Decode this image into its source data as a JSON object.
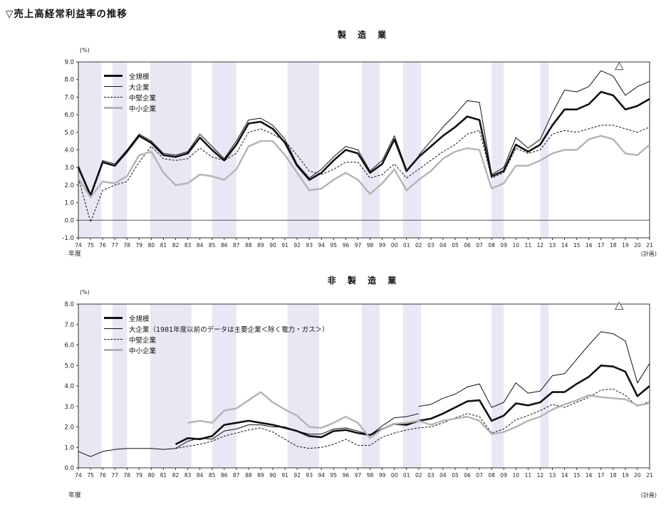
{
  "page_title": "▽売上高経常利益率の推移",
  "axis_unit_label": "(%)",
  "x_axis_caption": "年度",
  "plan_note": "(計画)",
  "colors": {
    "line_black": "#111111",
    "line_gray": "#b3b3b3",
    "recession_band": "#e8e8f5",
    "axis": "#333333",
    "marker_outline": "#555555"
  },
  "chart_data": [
    {
      "type": "line",
      "title": "製 造 業",
      "ylabel": "(%)",
      "xlabel": "年度",
      "ylim": [
        -1.0,
        9.0
      ],
      "ytick_step": 1.0,
      "grid": false,
      "legend_position": "top-left-inside",
      "y_tick_labels": [
        "9.0",
        "8.0",
        "7.0",
        "6.0",
        "5.0",
        "4.0",
        "3.0",
        "2.0",
        "1.0",
        "0.0",
        "-1.0"
      ],
      "x_labels": [
        "74",
        "75",
        "76",
        "77",
        "78",
        "79",
        "80",
        "81",
        "82",
        "83",
        "84",
        "85",
        "86",
        "87",
        "88",
        "89",
        "90",
        "91",
        "92",
        "93",
        "94",
        "95",
        "96",
        "97",
        "98",
        "99",
        "00",
        "01",
        "02",
        "03",
        "04",
        "05",
        "06",
        "07",
        "08",
        "09",
        "10",
        "11",
        "12",
        "13",
        "14",
        "15",
        "16",
        "17",
        "18",
        "19",
        "20",
        "21"
      ],
      "legend": [
        "全規模",
        "大企業",
        "中堅企業",
        "中小企業"
      ],
      "series": [
        {
          "key": "zenkibo",
          "name": "全規模",
          "style": "thick-black",
          "values": [
            3.0,
            1.4,
            3.3,
            3.1,
            3.9,
            4.8,
            4.4,
            3.7,
            3.6,
            3.8,
            4.7,
            4.0,
            3.4,
            4.3,
            5.5,
            5.6,
            5.2,
            4.4,
            3.1,
            2.3,
            2.7,
            3.4,
            4.0,
            3.8,
            2.7,
            3.2,
            4.6,
            2.8,
            3.6,
            4.2,
            4.8,
            5.3,
            5.9,
            5.7,
            2.5,
            2.8,
            4.3,
            3.9,
            4.3,
            5.4,
            6.3,
            6.3,
            6.6,
            7.3,
            7.1,
            6.3,
            6.5,
            6.9
          ]
        },
        {
          "key": "daikigyo-pre2002",
          "name": "大企業",
          "style": "thin-black",
          "values": [
            3.1,
            1.5,
            3.4,
            3.2,
            4.0,
            4.9,
            4.5,
            3.8,
            3.7,
            3.9,
            4.9,
            4.2,
            3.5,
            4.5,
            5.7,
            5.8,
            5.4,
            4.6,
            3.2,
            2.4,
            2.9,
            3.6,
            4.2,
            4.0,
            2.8,
            3.4,
            4.8,
            2.9,
            null,
            null,
            null,
            null,
            null,
            null,
            null,
            null,
            null,
            null,
            null,
            null,
            null,
            null,
            null,
            null,
            null,
            null,
            null,
            null
          ]
        },
        {
          "key": "daikigyo-post2002",
          "name": "大企業",
          "style": "thin-black",
          "values": [
            null,
            null,
            null,
            null,
            null,
            null,
            null,
            null,
            null,
            null,
            null,
            null,
            null,
            null,
            null,
            null,
            null,
            null,
            null,
            null,
            null,
            null,
            null,
            null,
            null,
            null,
            null,
            null,
            3.7,
            4.5,
            5.3,
            6.0,
            6.8,
            6.7,
            2.6,
            3.0,
            4.7,
            4.1,
            4.6,
            6.1,
            7.4,
            7.3,
            7.6,
            8.5,
            8.2,
            7.1,
            7.6,
            7.9
          ]
        },
        {
          "key": "chuken",
          "name": "中堅企業",
          "style": "dashed-black",
          "values": [
            2.4,
            -0.1,
            1.7,
            2.0,
            2.2,
            3.3,
            4.2,
            3.5,
            3.4,
            3.5,
            4.1,
            3.6,
            3.4,
            3.8,
            5.0,
            5.2,
            4.9,
            4.5,
            3.7,
            2.8,
            2.6,
            2.9,
            3.3,
            3.3,
            2.4,
            2.6,
            3.2,
            2.4,
            2.9,
            3.4,
            3.9,
            4.3,
            4.9,
            5.1,
            2.4,
            2.7,
            4.1,
            3.8,
            4.0,
            4.9,
            5.1,
            5.0,
            5.2,
            5.4,
            5.4,
            5.2,
            5.0,
            5.3
          ]
        },
        {
          "key": "chusho",
          "name": "中小企業",
          "style": "gray",
          "values": [
            2.4,
            1.3,
            2.2,
            2.1,
            2.5,
            3.7,
            3.9,
            2.7,
            2.0,
            2.1,
            2.6,
            2.5,
            2.3,
            2.9,
            4.2,
            4.5,
            4.5,
            3.7,
            2.7,
            1.7,
            1.8,
            2.3,
            2.7,
            2.3,
            1.5,
            2.1,
            2.9,
            1.7,
            2.3,
            2.8,
            3.5,
            3.9,
            4.1,
            4.0,
            1.8,
            2.1,
            3.1,
            3.1,
            3.4,
            3.8,
            4.0,
            4.0,
            4.6,
            4.8,
            4.6,
            3.8,
            3.7,
            4.3
          ]
        }
      ],
      "recession_bands": [
        [
          0,
          1.9
        ],
        [
          2.8,
          4.0
        ],
        [
          5.9,
          9.3
        ],
        [
          11.0,
          13.0
        ],
        [
          17.2,
          19.8
        ],
        [
          23.3,
          24.8
        ],
        [
          26.7,
          28.2
        ],
        [
          34.0,
          35.0
        ],
        [
          38.0,
          38.7
        ]
      ],
      "marker": {
        "shape": "triangle",
        "x": 44.5,
        "value": 8.75
      }
    },
    {
      "type": "line",
      "title": "非 製 造 業",
      "ylabel": "(%)",
      "xlabel": "年度",
      "ylim": [
        0.0,
        8.0
      ],
      "ytick_step": 1.0,
      "grid": false,
      "legend_position": "top-left-inside",
      "y_tick_labels": [
        "8.0",
        "7.0",
        "6.0",
        "5.0",
        "4.0",
        "3.0",
        "2.0",
        "1.0",
        "0.0"
      ],
      "x_labels": [
        "74",
        "75",
        "76",
        "77",
        "78",
        "79",
        "80",
        "81",
        "82",
        "83",
        "84",
        "85",
        "86",
        "87",
        "88",
        "89",
        "90",
        "91",
        "92",
        "93",
        "94",
        "95",
        "96",
        "97",
        "98",
        "99",
        "00",
        "01",
        "02",
        "03",
        "04",
        "05",
        "06",
        "07",
        "08",
        "09",
        "10",
        "11",
        "12",
        "13",
        "14",
        "15",
        "16",
        "17",
        "18",
        "19",
        "20",
        "21"
      ],
      "legend": [
        "全規模",
        "大企業（1981年度以前のデータは主要企業＜除く電力・ガス＞）",
        "中堅企業",
        "中小企業"
      ],
      "series": [
        {
          "key": "zenkibo",
          "name": "全規模",
          "style": "thick-black",
          "values": [
            null,
            null,
            null,
            null,
            null,
            null,
            null,
            null,
            1.15,
            1.45,
            1.4,
            1.55,
            2.1,
            2.2,
            2.3,
            2.2,
            2.1,
            1.95,
            1.8,
            1.55,
            1.5,
            1.8,
            1.85,
            1.7,
            1.6,
            1.9,
            2.15,
            2.1,
            2.3,
            2.4,
            2.65,
            2.95,
            3.25,
            3.3,
            2.3,
            2.55,
            3.15,
            3.05,
            3.2,
            3.7,
            3.7,
            4.1,
            4.45,
            5.0,
            4.95,
            4.7,
            3.5,
            4.0
          ]
        },
        {
          "key": "daikigyo-pre2002",
          "name": "大企業",
          "style": "thin-black",
          "values": [
            0.8,
            0.55,
            0.8,
            0.9,
            0.95,
            0.95,
            0.95,
            0.9,
            0.95,
            1.3,
            1.45,
            1.4,
            1.8,
            1.9,
            2.1,
            2.1,
            2.0,
            2.0,
            1.8,
            1.65,
            1.65,
            1.9,
            1.95,
            1.8,
            1.6,
            2.05,
            2.45,
            2.5,
            2.65,
            null,
            null,
            null,
            null,
            null,
            null,
            null,
            null,
            null,
            null,
            null,
            null,
            null,
            null,
            null,
            null,
            null,
            null,
            null
          ]
        },
        {
          "key": "daikigyo-post2002",
          "name": "大企業",
          "style": "thin-black",
          "values": [
            null,
            null,
            null,
            null,
            null,
            null,
            null,
            null,
            null,
            null,
            null,
            null,
            null,
            null,
            null,
            null,
            null,
            null,
            null,
            null,
            null,
            null,
            null,
            null,
            null,
            null,
            null,
            null,
            3.0,
            3.1,
            3.4,
            3.6,
            3.95,
            4.1,
            2.95,
            3.2,
            4.15,
            3.65,
            3.75,
            4.5,
            4.6,
            5.3,
            6.0,
            6.65,
            6.55,
            6.2,
            4.15,
            5.1
          ]
        },
        {
          "key": "chuken",
          "name": "中堅企業",
          "style": "dashed-black",
          "values": [
            null,
            null,
            null,
            null,
            null,
            null,
            null,
            null,
            0.95,
            1.05,
            1.15,
            1.3,
            1.55,
            1.7,
            1.85,
            1.95,
            1.75,
            1.4,
            1.05,
            0.95,
            1.0,
            1.15,
            1.4,
            1.1,
            1.1,
            1.5,
            1.7,
            1.85,
            1.95,
            2.0,
            2.2,
            2.45,
            2.65,
            2.5,
            1.7,
            1.9,
            2.35,
            2.55,
            2.8,
            3.1,
            2.95,
            3.2,
            3.45,
            3.8,
            3.85,
            3.55,
            3.0,
            3.25
          ]
        },
        {
          "key": "chusho",
          "name": "中小企業",
          "style": "gray",
          "values": [
            null,
            null,
            null,
            null,
            null,
            null,
            null,
            null,
            null,
            2.2,
            2.3,
            2.2,
            2.8,
            2.9,
            3.3,
            3.7,
            3.2,
            2.85,
            2.55,
            2.0,
            1.95,
            2.2,
            2.5,
            2.2,
            1.45,
            1.9,
            2.15,
            2.2,
            2.3,
            2.1,
            2.3,
            2.4,
            2.5,
            2.3,
            1.65,
            1.75,
            2.0,
            2.3,
            2.5,
            2.85,
            3.1,
            3.3,
            3.55,
            3.45,
            3.4,
            3.35,
            3.05,
            3.15
          ]
        }
      ],
      "recession_bands": [
        [
          0,
          1.9
        ],
        [
          2.8,
          4.0
        ],
        [
          5.9,
          9.3
        ],
        [
          11.0,
          13.0
        ],
        [
          17.2,
          19.8
        ],
        [
          23.3,
          24.8
        ],
        [
          26.7,
          28.2
        ],
        [
          34.0,
          35.0
        ],
        [
          38.0,
          38.7
        ]
      ],
      "marker": {
        "shape": "triangle",
        "x": 44.5,
        "value": 7.9
      }
    }
  ]
}
